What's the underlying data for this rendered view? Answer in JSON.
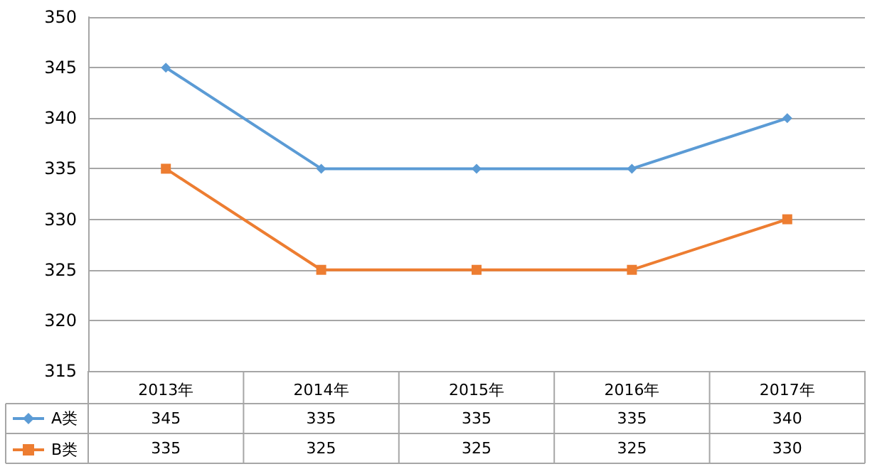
{
  "chart_data": {
    "type": "line",
    "categories": [
      "2013年",
      "2014年",
      "2015年",
      "2016年",
      "2017年"
    ],
    "series": [
      {
        "name": "A类",
        "color": "#5b9bd5",
        "marker": "diamond",
        "values": [
          345,
          335,
          335,
          335,
          340
        ]
      },
      {
        "name": "B类",
        "color": "#ed7d31",
        "marker": "square",
        "values": [
          335,
          325,
          325,
          325,
          330
        ]
      }
    ],
    "ylim": [
      315,
      350
    ],
    "yticks": [
      315,
      320,
      325,
      330,
      335,
      340,
      345,
      350
    ],
    "grid": "y",
    "legend": "bottom",
    "data_labels": true
  }
}
